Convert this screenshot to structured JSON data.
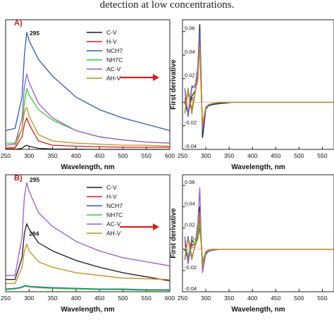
{
  "caption_fragment": "detection at low concentrations.",
  "chart_data": [
    {
      "type": "line",
      "panel_label": "A)",
      "peak_label": "295",
      "xlabel": "Wavelength, nm",
      "ylabel": "",
      "xlim": [
        250,
        600
      ],
      "x_ticks": [
        "250",
        "300",
        "350",
        "400",
        "450",
        "500",
        "550",
        "600"
      ],
      "legend_position": "top-right",
      "x": [
        250,
        270,
        285,
        290,
        295,
        300,
        320,
        350,
        400,
        450,
        500,
        550,
        600
      ],
      "series": [
        {
          "name": "C-V",
          "color": "#1a1a1a",
          "values": [
            0.0,
            0.0,
            0.05,
            0.15,
            0.2,
            0.15,
            0.05,
            0.02,
            0.01,
            0.0,
            0.0,
            0.0,
            0.0
          ]
        },
        {
          "name": "H-V",
          "color": "#cc1f1f",
          "values": [
            0.05,
            0.06,
            0.6,
            1.2,
            1.5,
            1.2,
            0.4,
            0.2,
            0.15,
            0.12,
            0.1,
            0.1,
            0.1
          ]
        },
        {
          "name": "NCH7",
          "color": "#2a5db0",
          "values": [
            0.9,
            1.0,
            2.5,
            4.5,
            5.6,
            5.2,
            4.3,
            3.5,
            2.5,
            1.9,
            1.5,
            1.2,
            0.9
          ]
        },
        {
          "name": "NH7C",
          "color": "#33cc33",
          "values": [
            0.3,
            0.3,
            1.0,
            2.2,
            2.9,
            2.6,
            1.9,
            1.4,
            0.9,
            0.6,
            0.45,
            0.35,
            0.3
          ]
        },
        {
          "name": "AC-V",
          "color": "#9b59d0",
          "values": [
            0.2,
            0.25,
            1.5,
            3.0,
            3.6,
            3.2,
            2.2,
            1.5,
            0.9,
            0.6,
            0.45,
            0.35,
            0.3
          ]
        },
        {
          "name": "AH-V",
          "color": "#c98a1a",
          "values": [
            0.1,
            0.1,
            1.0,
            1.8,
            2.0,
            1.6,
            0.7,
            0.4,
            0.3,
            0.25,
            0.2,
            0.2,
            0.15
          ]
        }
      ]
    },
    {
      "type": "line",
      "panel_label": "",
      "xlabel": "Wavelength, nm",
      "ylabel": "First derivative",
      "xlim": [
        250,
        575
      ],
      "ylim": [
        -0.04,
        0.07
      ],
      "x_ticks": [
        "250",
        "300",
        "350",
        "400",
        "450",
        "500",
        "550"
      ],
      "y_ticks": [
        "0.06",
        "0.04",
        "0.02",
        "0.00",
        "-0.02",
        "-0.04"
      ],
      "x": [
        255,
        262,
        270,
        278,
        283,
        287,
        290,
        293,
        296,
        300,
        306,
        315,
        330,
        360,
        400,
        450,
        500,
        550,
        575
      ],
      "series": [
        {
          "name": "C-V",
          "color": "#1a1a1a",
          "values": [
            0.0,
            -0.01,
            0.005,
            0.01,
            0.03,
            0.066,
            0.02,
            -0.03,
            -0.02,
            -0.006,
            -0.003,
            -0.002,
            -0.001,
            0.0,
            0.0,
            0.0,
            0.0,
            0.0,
            0.0
          ]
        },
        {
          "name": "H-V",
          "color": "#cc1f1f",
          "values": [
            0.0,
            0.008,
            -0.006,
            0.01,
            0.02,
            0.05,
            0.01,
            -0.02,
            -0.012,
            -0.004,
            -0.002,
            -0.001,
            0.0,
            0.0,
            0.0,
            0.0,
            0.0,
            0.0,
            0.0
          ]
        },
        {
          "name": "NCH7",
          "color": "#2a5db0",
          "values": [
            0.01,
            -0.012,
            0.012,
            0.015,
            0.03,
            0.06,
            0.015,
            -0.025,
            -0.016,
            -0.006,
            -0.003,
            -0.001,
            0.0,
            0.0,
            0.0,
            0.0,
            0.0,
            0.0,
            0.0
          ]
        },
        {
          "name": "NH7C",
          "color": "#33cc33",
          "values": [
            -0.008,
            0.012,
            -0.01,
            0.01,
            0.025,
            0.045,
            0.01,
            -0.02,
            -0.014,
            -0.005,
            -0.002,
            -0.001,
            0.0,
            0.0,
            0.0,
            0.0,
            0.0,
            0.0,
            0.0
          ]
        },
        {
          "name": "AC-V",
          "color": "#9b59d0",
          "values": [
            0.012,
            -0.01,
            0.014,
            0.012,
            0.028,
            0.055,
            0.012,
            -0.022,
            -0.015,
            -0.005,
            -0.002,
            -0.001,
            0.0,
            0.0,
            0.0,
            0.0,
            0.0,
            0.0,
            0.0
          ]
        },
        {
          "name": "AH-V",
          "color": "#c98a1a",
          "values": [
            -0.01,
            0.01,
            -0.008,
            0.01,
            0.022,
            0.048,
            0.01,
            -0.02,
            -0.013,
            -0.004,
            -0.002,
            -0.001,
            0.0,
            0.0,
            0.0,
            0.0,
            0.0,
            0.0,
            0.0
          ]
        }
      ]
    },
    {
      "type": "line",
      "panel_label": "B)",
      "peak_label": "295",
      "peak_label_2": "294",
      "xlabel": "Wavelength, nm",
      "ylabel": "",
      "xlim": [
        250,
        600
      ],
      "x_ticks": [
        "250",
        "300",
        "350",
        "400",
        "450",
        "500",
        "550",
        "600"
      ],
      "legend_position": "top-right",
      "x": [
        250,
        270,
        285,
        290,
        295,
        300,
        320,
        350,
        400,
        450,
        500,
        550,
        600
      ],
      "series": [
        {
          "name": "C-V",
          "color": "#1a1a1a",
          "values": [
            0.9,
            0.9,
            2.5,
            4.3,
            5.0,
            4.6,
            3.6,
            3.0,
            2.3,
            1.8,
            1.4,
            1.1,
            0.8
          ]
        },
        {
          "name": "H-V",
          "color": "#cc1f1f",
          "values": [
            0.2,
            0.2,
            0.3,
            0.4,
            0.4,
            0.35,
            0.3,
            0.25,
            0.2,
            0.2,
            0.15,
            0.15,
            0.1
          ]
        },
        {
          "name": "NCH7",
          "color": "#2a5db0",
          "values": [
            0.2,
            0.25,
            0.35,
            0.45,
            0.45,
            0.4,
            0.35,
            0.3,
            0.25,
            0.2,
            0.2,
            0.15,
            0.15
          ]
        },
        {
          "name": "NH7C",
          "color": "#33cc33",
          "values": [
            0.15,
            0.2,
            0.3,
            0.4,
            0.4,
            0.35,
            0.3,
            0.25,
            0.2,
            0.15,
            0.15,
            0.1,
            0.1
          ]
        },
        {
          "name": "AC-V",
          "color": "#9b59d0",
          "values": [
            1.2,
            1.2,
            4.0,
            7.0,
            8.0,
            7.4,
            5.8,
            4.8,
            3.7,
            3.0,
            2.5,
            2.2,
            1.9
          ]
        },
        {
          "name": "AH-V",
          "color": "#c98a1a",
          "values": [
            0.6,
            0.6,
            1.8,
            3.0,
            3.5,
            3.0,
            2.2,
            1.8,
            1.4,
            1.2,
            1.0,
            0.95,
            0.9
          ]
        }
      ]
    },
    {
      "type": "line",
      "panel_label": "",
      "xlabel": "Wavelength, nm",
      "ylabel": "First derivative",
      "xlim": [
        250,
        575
      ],
      "ylim": [
        -0.04,
        0.07
      ],
      "x_ticks": [
        "250",
        "300",
        "350",
        "400",
        "450",
        "500",
        "550"
      ],
      "y_ticks": [
        "0.06",
        "0.04",
        "0.02",
        "0.00",
        "-0.02",
        "-0.04"
      ],
      "x": [
        255,
        262,
        270,
        278,
        283,
        287,
        290,
        293,
        296,
        300,
        306,
        315,
        330,
        360,
        400,
        450,
        500,
        550,
        575
      ],
      "series": [
        {
          "name": "C-V",
          "color": "#1a1a1a",
          "values": [
            0.0,
            -0.01,
            0.008,
            0.005,
            0.02,
            0.04,
            0.01,
            -0.02,
            -0.012,
            -0.004,
            -0.002,
            -0.001,
            0.0,
            0.0,
            0.0,
            0.0,
            0.0,
            0.0,
            0.0
          ]
        },
        {
          "name": "H-V",
          "color": "#cc1f1f",
          "values": [
            0.008,
            -0.012,
            0.005,
            0.004,
            0.01,
            0.02,
            0.006,
            -0.01,
            -0.008,
            -0.002,
            -0.001,
            0.0,
            0.0,
            0.0,
            0.0,
            0.0,
            0.0,
            0.0,
            0.0
          ]
        },
        {
          "name": "NCH7",
          "color": "#2a5db0",
          "values": [
            -0.01,
            0.012,
            -0.008,
            0.005,
            0.012,
            0.03,
            0.006,
            -0.015,
            -0.01,
            -0.003,
            -0.001,
            0.0,
            0.0,
            0.0,
            0.0,
            0.0,
            0.0,
            0.0,
            0.0
          ]
        },
        {
          "name": "NH7C",
          "color": "#33cc33",
          "values": [
            0.01,
            -0.008,
            0.01,
            0.004,
            0.01,
            0.025,
            0.005,
            -0.012,
            -0.008,
            -0.002,
            -0.001,
            0.0,
            0.0,
            0.0,
            0.0,
            0.0,
            0.0,
            0.0,
            0.0
          ]
        },
        {
          "name": "AC-V",
          "color": "#9b59d0",
          "values": [
            0.012,
            -0.014,
            0.012,
            0.008,
            0.025,
            0.058,
            0.012,
            -0.022,
            -0.014,
            -0.005,
            -0.002,
            -0.001,
            0.0,
            0.0,
            0.0,
            0.0,
            0.0,
            0.0,
            0.0
          ]
        },
        {
          "name": "AH-V",
          "color": "#c98a1a",
          "values": [
            -0.008,
            0.01,
            -0.01,
            0.006,
            0.018,
            0.035,
            0.008,
            -0.016,
            -0.01,
            -0.003,
            -0.001,
            0.0,
            0.0,
            0.0,
            0.0,
            0.0,
            0.0,
            0.0,
            0.0
          ]
        }
      ]
    }
  ],
  "arrow_color": "#d62020"
}
